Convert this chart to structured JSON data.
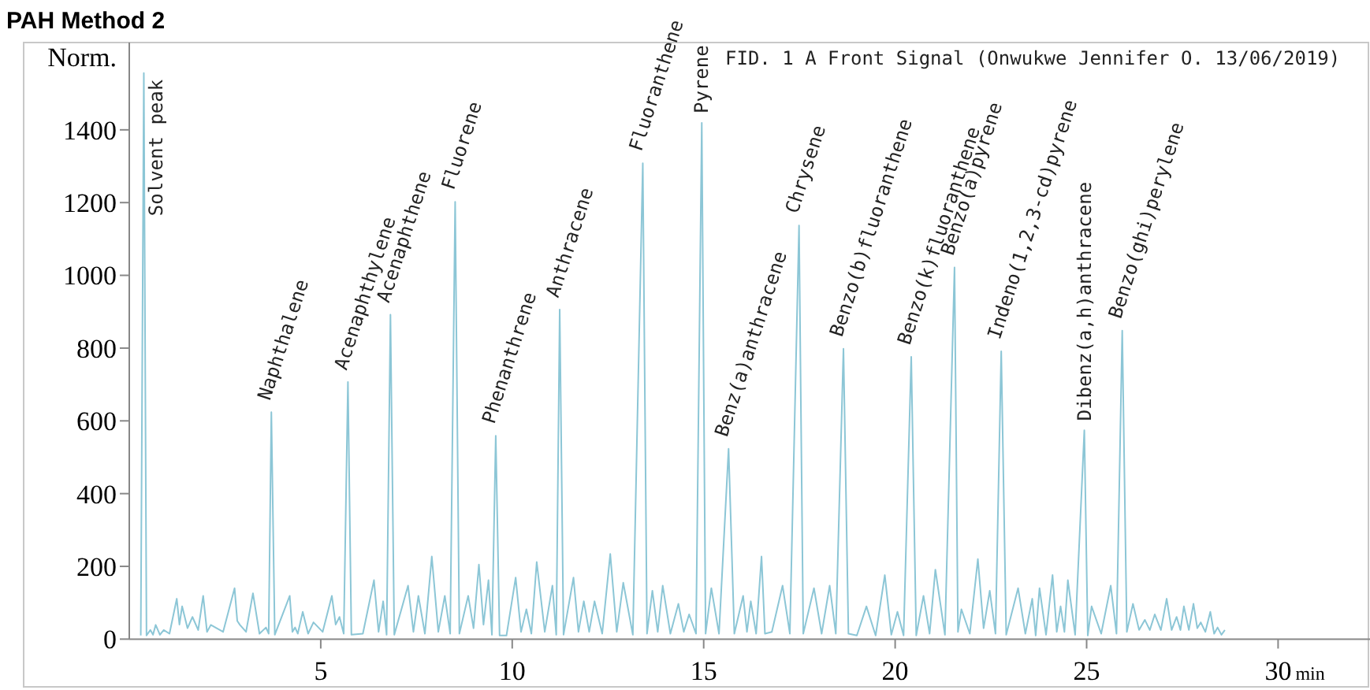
{
  "chart_data": {
    "type": "line",
    "title": "PAH Method 2",
    "xlabel": "min",
    "ylabel": "Norm.",
    "xlim": [
      0,
      32.4
    ],
    "ylim": [
      0,
      1640
    ],
    "xticks": [
      5,
      10,
      15,
      20,
      25,
      30
    ],
    "yticks": [
      0,
      200,
      400,
      600,
      800,
      1000,
      1200,
      1400
    ],
    "grid": false,
    "marker": "none",
    "line_style": "solid",
    "series": [
      {
        "color": "#8cc6d6",
        "x": [
          0.3,
          0.38,
          0.45,
          0.55,
          0.62,
          0.69,
          0.8,
          0.9,
          1.05,
          1.24,
          1.31,
          1.38,
          1.52,
          1.65,
          1.8,
          1.93,
          2.03,
          2.13,
          2.45,
          2.75,
          2.82,
          2.89,
          3.05,
          3.23,
          3.4,
          3.57,
          3.64,
          3.71,
          3.8,
          4.19,
          4.26,
          4.33,
          4.4,
          4.53,
          4.67,
          4.81,
          5.05,
          5.29,
          5.39,
          5.49,
          5.6,
          5.71,
          5.8,
          6.1,
          6.39,
          6.51,
          6.63,
          6.72,
          6.82,
          6.92,
          7.28,
          7.42,
          7.55,
          7.72,
          7.9,
          8.07,
          8.24,
          8.38,
          8.51,
          8.62,
          8.85,
          8.99,
          9.13,
          9.25,
          9.38,
          9.47,
          9.57,
          9.67,
          9.85,
          10.09,
          10.23,
          10.37,
          10.5,
          10.64,
          10.85,
          11.05,
          11.15,
          11.24,
          11.34,
          11.6,
          11.73,
          11.87,
          12.01,
          12.15,
          12.35,
          12.56,
          12.73,
          12.9,
          13.15,
          13.41,
          13.52,
          13.66,
          13.8,
          13.93,
          14.13,
          14.34,
          14.48,
          14.62,
          14.8,
          14.95,
          15.05,
          15.2,
          15.4,
          15.65,
          15.8,
          16.03,
          16.13,
          16.23,
          16.37,
          16.51,
          16.6,
          16.78,
          17.06,
          17.25,
          17.49,
          17.6,
          17.88,
          18.08,
          18.29,
          18.45,
          18.65,
          18.78,
          19.0,
          19.25,
          19.49,
          19.73,
          19.9,
          20.06,
          20.22,
          20.42,
          20.55,
          20.74,
          20.9,
          21.05,
          21.3,
          21.55,
          21.64,
          21.73,
          21.95,
          22.16,
          22.31,
          22.47,
          22.62,
          22.77,
          22.9,
          23.21,
          23.4,
          23.58,
          23.67,
          23.77,
          23.94,
          24.11,
          24.22,
          24.32,
          24.42,
          24.51,
          24.7,
          24.94,
          25.03,
          25.13,
          25.38,
          25.63,
          25.78,
          25.93,
          26.05,
          26.21,
          26.37,
          26.52,
          26.65,
          26.78,
          26.94,
          27.09,
          27.22,
          27.35,
          27.45,
          27.54,
          27.67,
          27.79,
          27.89,
          27.98,
          28.1,
          28.23,
          28.33,
          28.42,
          28.52,
          28.61
        ],
        "values": [
          10,
          1556,
          10,
          25,
          12,
          39,
          12,
          25,
          15,
          111,
          40,
          90,
          30,
          61,
          25,
          119,
          20,
          39,
          20,
          140,
          50,
          39,
          20,
          126,
          15,
          32,
          15,
          624,
          12,
          119,
          20,
          32,
          15,
          75,
          15,
          46,
          20,
          119,
          40,
          61,
          15,
          707,
          12,
          15,
          162,
          20,
          104,
          12,
          892,
          12,
          147,
          20,
          119,
          15,
          227,
          20,
          119,
          15,
          1202,
          15,
          119,
          30,
          205,
          40,
          162,
          12,
          559,
          10,
          10,
          169,
          20,
          82,
          15,
          212,
          20,
          147,
          12,
          906,
          12,
          169,
          20,
          104,
          20,
          104,
          15,
          234,
          20,
          155,
          12,
          1308,
          15,
          133,
          20,
          147,
          15,
          97,
          20,
          68,
          15,
          1419,
          15,
          140,
          15,
          523,
          15,
          119,
          20,
          104,
          15,
          227,
          15,
          20,
          147,
          15,
          1137,
          15,
          140,
          15,
          147,
          15,
          798,
          15,
          10,
          90,
          10,
          176,
          12,
          75,
          10,
          776,
          10,
          119,
          15,
          191,
          12,
          1022,
          20,
          82,
          15,
          220,
          30,
          133,
          15,
          791,
          12,
          140,
          15,
          111,
          10,
          140,
          12,
          176,
          20,
          90,
          20,
          162,
          12,
          574,
          10,
          90,
          15,
          147,
          15,
          848,
          20,
          97,
          25,
          53,
          25,
          68,
          25,
          111,
          25,
          61,
          25,
          90,
          25,
          97,
          30,
          46,
          20,
          75,
          15,
          32,
          12,
          25
        ]
      }
    ],
    "annotations": [
      "FID. 1 A Front Signal (Onwukwe Jennifer O. 13/06/2019)",
      {
        "text": "Solvent peak",
        "x": 0.38,
        "y": 1556
      },
      {
        "text": "Naphthalene",
        "x": 3.71,
        "y": 624
      },
      {
        "text": "Acenaphthylene",
        "x": 5.71,
        "y": 707
      },
      {
        "text": "Acenaphthene",
        "x": 6.82,
        "y": 892
      },
      {
        "text": "Fluorene",
        "x": 8.51,
        "y": 1202
      },
      {
        "text": "Phenanthrene",
        "x": 9.57,
        "y": 559
      },
      {
        "text": "Anthracene",
        "x": 11.24,
        "y": 906
      },
      {
        "text": "Fluoranthene",
        "x": 13.41,
        "y": 1308
      },
      {
        "text": "Pyrene",
        "x": 14.95,
        "y": 1419
      },
      {
        "text": "Benz(a)anthracene",
        "x": 15.65,
        "y": 523
      },
      {
        "text": "Chrysene",
        "x": 17.49,
        "y": 1137
      },
      {
        "text": "Benzo(b)fluoranthene",
        "x": 18.65,
        "y": 798
      },
      {
        "text": "Benzo(k)fluoranthene",
        "x": 20.42,
        "y": 776
      },
      {
        "text": "Benzo(a)pyrene",
        "x": 21.55,
        "y": 1022
      },
      {
        "text": "Indeno(1,2,3-cd)pyrene",
        "x": 22.77,
        "y": 791
      },
      {
        "text": "Dibenz(a,h)anthracene",
        "x": 24.94,
        "y": 574
      },
      {
        "text": "Benzo(ghi)perylene",
        "x": 25.93,
        "y": 848
      }
    ]
  }
}
